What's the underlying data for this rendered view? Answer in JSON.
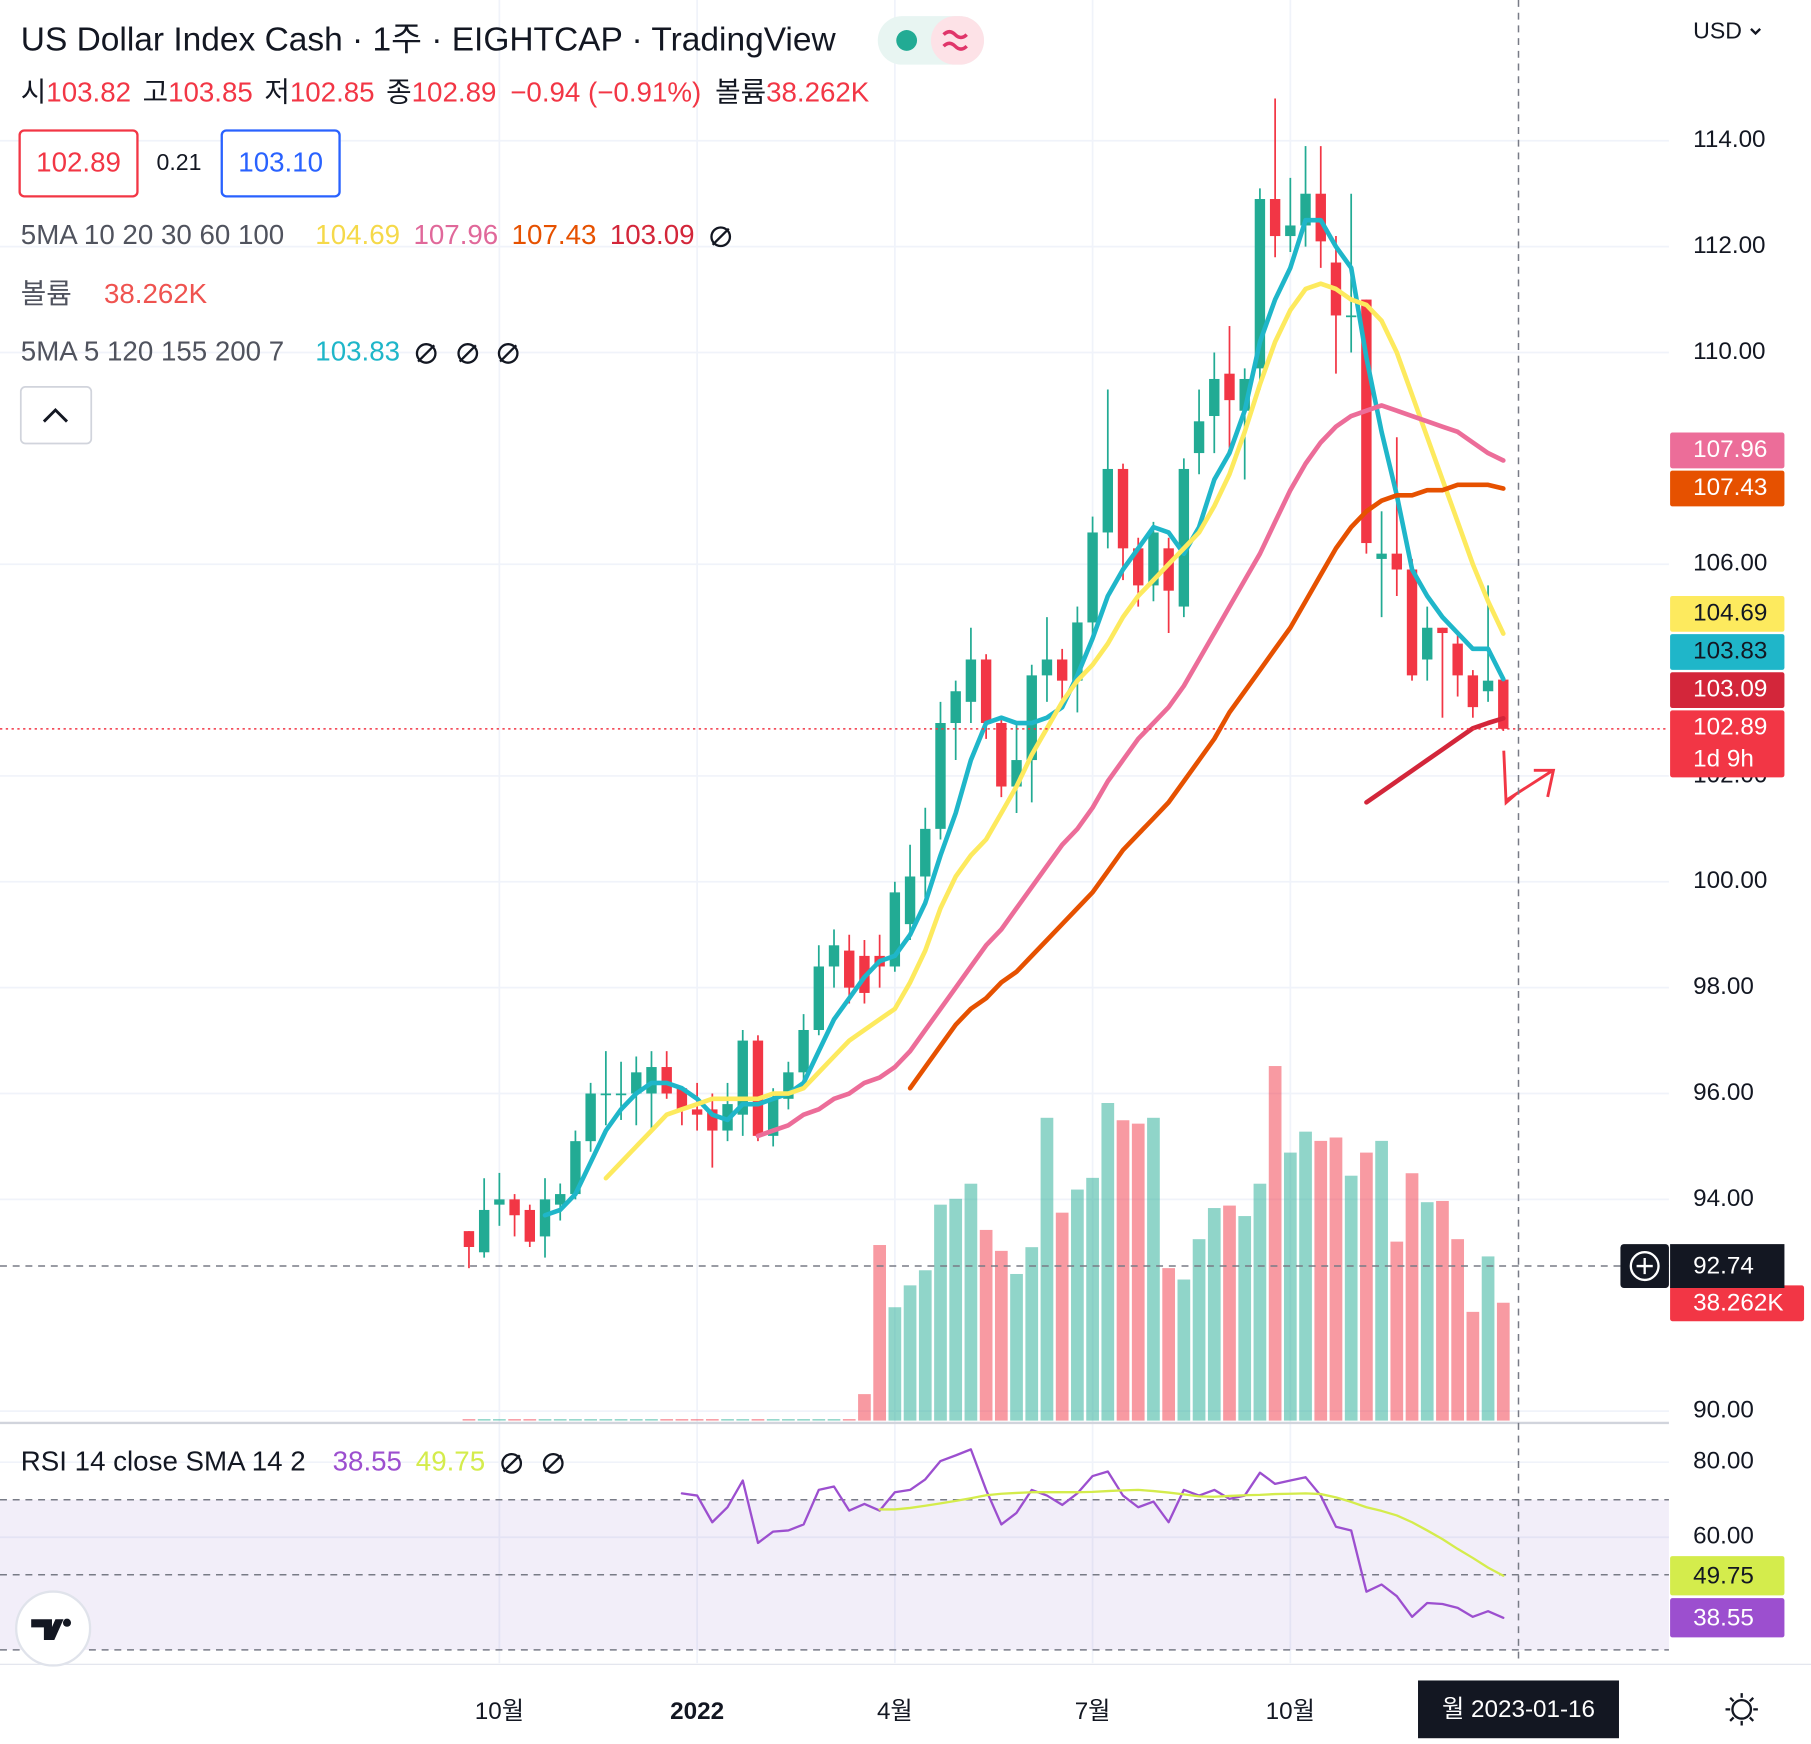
{
  "chart_data": {
    "type": "candlestick",
    "title": "US Dollar Index Cash · 1주 · EIGHTCAP · TradingView",
    "currency": "USD",
    "ohlc": [
      {
        "label": "시",
        "value": 103.82
      },
      {
        "label": "고",
        "value": 103.85
      },
      {
        "label": "저",
        "value": 102.85
      },
      {
        "label": "종",
        "value": 102.89
      }
    ],
    "change": "−0.94 (−0.91%)",
    "volume_legend": {
      "label": "볼륨",
      "value": "38.262K"
    },
    "quote": {
      "bid": "102.89",
      "spread": "0.21",
      "ask": "103.10"
    },
    "indicators": [
      {
        "name": "5MA 10 20 30 60 100",
        "values": [
          {
            "label": "104.69",
            "color": "#f5d94a"
          },
          {
            "label": "107.96",
            "color": "#e0689a"
          },
          {
            "label": "107.43",
            "color": "#e65100"
          },
          {
            "label": "103.09",
            "color": "#d3263a"
          }
        ]
      },
      {
        "name": "볼륨",
        "values": [
          {
            "label": "38.262K",
            "color": "#ef5350"
          }
        ]
      },
      {
        "name": "5MA 5 120 155 200 7",
        "values": [
          {
            "label": "103.83",
            "color": "#1fb6c9"
          }
        ]
      }
    ],
    "up_color": "#22ab94",
    "down_color": "#f23645",
    "xlim": [
      -30.83,
      78.89
    ],
    "xticks": [
      {
        "value": 2,
        "label": "10월"
      },
      {
        "value": 15,
        "label": "2022"
      },
      {
        "value": 28,
        "label": "4월"
      },
      {
        "value": 41,
        "label": "7월"
      },
      {
        "value": 54,
        "label": "10월"
      }
    ],
    "ylim": [
      89.82,
      116.66
    ],
    "yticks": [
      {
        "value": 90,
        "label": "90.00"
      },
      {
        "value": 94,
        "label": "94.00"
      },
      {
        "value": 96,
        "label": "96.00"
      },
      {
        "value": 98,
        "label": "98.00"
      },
      {
        "value": 100,
        "label": "100.00"
      },
      {
        "value": 102,
        "label": "102.00"
      },
      {
        "value": 106,
        "label": "106.00"
      },
      {
        "value": 110,
        "label": "110.00"
      },
      {
        "value": 112,
        "label": "112.00"
      },
      {
        "value": 114,
        "label": "114.00"
      }
    ],
    "grid": true,
    "open": [
      93.4,
      93.0,
      93.9,
      94.0,
      93.8,
      93.3,
      93.9,
      94.1,
      95.1,
      96.0,
      96.0,
      96.0,
      96.0,
      96.5,
      96.1,
      95.7,
      95.7,
      95.3,
      95.6,
      97.0,
      95.2,
      95.9,
      96.4,
      97.2,
      98.4,
      98.7,
      98.6,
      98.6,
      98.4,
      99.2,
      100.1,
      101.0,
      103.0,
      103.4,
      104.2,
      103.0,
      101.8,
      102.3,
      103.9,
      104.2,
      103.8,
      104.9,
      106.6,
      107.8,
      106.3,
      105.6,
      106.3,
      105.2,
      108.1,
      108.8,
      109.6,
      108.9,
      109.7,
      112.9,
      112.2,
      112.4,
      113.0,
      111.7,
      110.7,
      111.0,
      106.1,
      106.2,
      105.9,
      104.2,
      104.8,
      104.5,
      103.9,
      103.6,
      103.82
    ],
    "high": [
      93.4,
      94.4,
      94.5,
      94.1,
      93.9,
      94.4,
      94.3,
      95.3,
      96.2,
      96.8,
      96.6,
      96.7,
      96.8,
      96.8,
      96.1,
      96.2,
      96.0,
      96.2,
      97.2,
      97.1,
      96.1,
      96.6,
      97.5,
      98.8,
      99.1,
      99.0,
      98.9,
      99.0,
      100.0,
      100.7,
      101.4,
      103.4,
      103.8,
      104.8,
      104.3,
      103.1,
      103.0,
      104.1,
      105.0,
      104.4,
      105.2,
      106.9,
      109.3,
      107.9,
      106.5,
      106.8,
      106.5,
      108.0,
      109.3,
      110.0,
      110.5,
      109.7,
      113.1,
      114.8,
      113.3,
      113.9,
      113.9,
      112.2,
      113.0,
      111.0,
      107.0,
      108.4,
      106.1,
      105.2,
      104.8,
      104.7,
      104.0,
      105.6,
      103.85
    ],
    "low": [
      92.7,
      92.9,
      93.5,
      93.3,
      93.1,
      92.9,
      93.6,
      94.0,
      94.9,
      95.4,
      95.5,
      95.4,
      95.3,
      95.9,
      95.4,
      95.3,
      94.6,
      95.1,
      95.2,
      95.1,
      95.0,
      95.7,
      96.1,
      97.1,
      98.0,
      97.7,
      97.7,
      98.0,
      98.3,
      98.9,
      99.7,
      100.8,
      102.3,
      103.0,
      102.7,
      101.6,
      101.3,
      101.5,
      103.4,
      103.3,
      103.2,
      104.6,
      106.3,
      105.7,
      105.2,
      105.3,
      104.7,
      105.0,
      107.7,
      108.1,
      108.2,
      107.6,
      109.3,
      111.8,
      111.9,
      112.0,
      111.6,
      109.6,
      110.0,
      106.2,
      105.0,
      105.4,
      103.8,
      103.8,
      103.1,
      103.5,
      103.1,
      103.4,
      102.85
    ],
    "close": [
      93.1,
      93.8,
      94.0,
      93.7,
      93.2,
      94.0,
      94.1,
      95.1,
      96.0,
      96.0,
      96.0,
      96.4,
      96.5,
      96.0,
      95.7,
      95.6,
      95.3,
      95.8,
      97.0,
      95.2,
      95.9,
      96.4,
      97.2,
      98.4,
      98.8,
      98.0,
      97.9,
      98.4,
      99.8,
      100.1,
      101.0,
      103.0,
      103.6,
      104.2,
      103.0,
      101.8,
      102.3,
      103.9,
      104.2,
      103.8,
      104.9,
      106.6,
      107.8,
      106.3,
      105.6,
      106.6,
      105.5,
      107.8,
      108.7,
      109.5,
      109.1,
      109.5,
      112.9,
      112.2,
      112.4,
      113.0,
      112.1,
      110.7,
      110.7,
      106.4,
      106.2,
      105.9,
      103.9,
      104.8,
      104.7,
      103.9,
      103.3,
      103.8,
      102.89
    ],
    "volume": [
      0.5,
      0.5,
      0.5,
      0.5,
      0.5,
      0.5,
      0.5,
      0.5,
      0.5,
      0.5,
      0.5,
      0.5,
      0.5,
      0.5,
      0.5,
      0.5,
      0.5,
      0.5,
      0.5,
      0.5,
      0.5,
      0.5,
      0.5,
      0.5,
      0.5,
      0.5,
      8.6,
      57.0,
      36.8,
      43.9,
      48.8,
      70.1,
      72.0,
      76.9,
      61.9,
      55.1,
      47.6,
      56.3,
      98.3,
      67.5,
      75.0,
      78.8,
      103.1,
      97.5,
      96.4,
      98.3,
      49.5,
      45.8,
      58.9,
      69.0,
      69.8,
      66.4,
      76.9,
      115.1,
      87.0,
      93.8,
      90.8,
      91.9,
      79.5,
      87.0,
      90.8,
      58.1,
      80.3,
      70.9,
      71.3,
      58.9,
      35.3,
      53.3,
      38.262
    ],
    "volume_badge": {
      "label": "38.262K",
      "color": "#f23645"
    },
    "series": [
      {
        "color": "#1fb6c9",
        "values": [
          null,
          null,
          null,
          null,
          null,
          93.7,
          93.8,
          94.1,
          94.7,
          95.3,
          95.7,
          96.0,
          96.2,
          96.2,
          96.1,
          95.9,
          95.6,
          95.5,
          95.8,
          95.8,
          95.9,
          96.0,
          96.2,
          96.8,
          97.4,
          97.8,
          98.2,
          98.5,
          98.6,
          99.0,
          99.6,
          100.5,
          101.3,
          102.3,
          103.0,
          103.1,
          103.0,
          103.0,
          103.1,
          103.3,
          103.9,
          104.6,
          105.4,
          105.9,
          106.3,
          106.7,
          106.6,
          106.2,
          106.7,
          107.6,
          108.1,
          108.9,
          110.2,
          111.0,
          111.6,
          112.5,
          112.5,
          112.0,
          111.6,
          109.9,
          108.5,
          107.3,
          105.9,
          105.4,
          105.0,
          104.7,
          104.4,
          104.4,
          103.83
        ]
      },
      {
        "color": "#fdea5e",
        "values": [
          null,
          null,
          null,
          null,
          null,
          null,
          null,
          null,
          null,
          94.4,
          94.7,
          95.0,
          95.3,
          95.6,
          95.7,
          95.8,
          95.9,
          95.9,
          95.9,
          95.9,
          96.0,
          96.0,
          96.1,
          96.4,
          96.7,
          97.0,
          97.2,
          97.4,
          97.6,
          98.1,
          98.7,
          99.5,
          100.1,
          100.5,
          100.8,
          101.3,
          101.8,
          102.4,
          102.9,
          103.4,
          103.8,
          104.1,
          104.5,
          105.0,
          105.4,
          105.7,
          106.0,
          106.3,
          106.6,
          107.1,
          107.7,
          108.5,
          109.4,
          110.2,
          110.8,
          111.2,
          111.3,
          111.2,
          111.0,
          110.9,
          110.6,
          110.0,
          109.2,
          108.4,
          107.6,
          106.8,
          106.0,
          105.3,
          104.69
        ]
      },
      {
        "color": "#ec6d99",
        "values": [
          null,
          null,
          null,
          null,
          null,
          null,
          null,
          null,
          null,
          null,
          null,
          null,
          null,
          null,
          null,
          null,
          null,
          null,
          null,
          95.2,
          95.3,
          95.4,
          95.6,
          95.7,
          95.9,
          96.0,
          96.2,
          96.3,
          96.5,
          96.8,
          97.2,
          97.6,
          98.0,
          98.4,
          98.8,
          99.1,
          99.5,
          99.9,
          100.3,
          100.7,
          101.0,
          101.4,
          101.9,
          102.3,
          102.7,
          103.0,
          103.3,
          103.7,
          104.2,
          104.7,
          105.2,
          105.7,
          106.2,
          106.8,
          107.4,
          107.9,
          108.3,
          108.6,
          108.8,
          108.9,
          109.0,
          108.9,
          108.8,
          108.7,
          108.6,
          108.5,
          108.3,
          108.1,
          107.96
        ]
      },
      {
        "color": "#e65100",
        "values": [
          null,
          null,
          null,
          null,
          null,
          null,
          null,
          null,
          null,
          null,
          null,
          null,
          null,
          null,
          null,
          null,
          null,
          null,
          null,
          null,
          null,
          null,
          null,
          null,
          null,
          null,
          null,
          null,
          null,
          96.1,
          96.5,
          96.9,
          97.3,
          97.6,
          97.8,
          98.1,
          98.3,
          98.6,
          98.9,
          99.2,
          99.5,
          99.8,
          100.2,
          100.6,
          100.9,
          101.2,
          101.5,
          101.9,
          102.3,
          102.7,
          103.2,
          103.6,
          104.0,
          104.4,
          104.8,
          105.3,
          105.8,
          106.3,
          106.7,
          107.0,
          107.2,
          107.3,
          107.3,
          107.4,
          107.4,
          107.5,
          107.5,
          107.5,
          107.43
        ]
      },
      {
        "color": "#d3263a",
        "values": [
          null,
          null,
          null,
          null,
          null,
          null,
          null,
          null,
          null,
          null,
          null,
          null,
          null,
          null,
          null,
          null,
          null,
          null,
          null,
          null,
          null,
          null,
          null,
          null,
          null,
          null,
          null,
          null,
          null,
          null,
          null,
          null,
          null,
          null,
          null,
          null,
          null,
          null,
          null,
          null,
          null,
          null,
          null,
          null,
          null,
          null,
          null,
          null,
          null,
          null,
          null,
          null,
          null,
          null,
          null,
          null,
          null,
          null,
          null,
          101.5,
          101.7,
          101.9,
          102.1,
          102.3,
          102.5,
          102.7,
          102.9,
          103.0,
          103.09
        ]
      }
    ],
    "price_badges": [
      {
        "value": 107.96,
        "label": "107.96",
        "color": "#ec6d99",
        "text_color": "#ffffff"
      },
      {
        "value": 107.43,
        "label": "107.43",
        "color": "#e65100",
        "text_color": "#ffffff"
      },
      {
        "value": 104.69,
        "label": "104.69",
        "color": "#fdea5e",
        "text_color": "#131722"
      },
      {
        "value": 103.83,
        "label": "103.83",
        "color": "#1fb6c9",
        "text_color": "#131722"
      },
      {
        "value": 103.09,
        "label": "103.09",
        "color": "#d3263a",
        "text_color": "#ffffff"
      },
      {
        "value": 102.89,
        "label": "102.89",
        "sub": "1d 9h",
        "color": "#f23645",
        "text_color": "#ffffff"
      }
    ],
    "crosshair": {
      "x": 69,
      "value": 92.74,
      "label": "92.74",
      "date": "월 2023-01-16"
    },
    "rsi": {
      "legend": "RSI 14 close SMA 14 2",
      "ylim": [
        26.46,
        90.46
      ],
      "yticks": [
        {
          "value": 80,
          "label": "80.00"
        },
        {
          "value": 60,
          "label": "60.00"
        }
      ],
      "levels": [
        70,
        50,
        30
      ],
      "band": [
        30,
        70
      ],
      "series": [
        {
          "color": "#9c4fcf",
          "label": "38.55",
          "values": [
            null,
            null,
            null,
            null,
            null,
            null,
            null,
            null,
            null,
            null,
            null,
            null,
            null,
            null,
            71.7,
            71.1,
            64.0,
            68.0,
            75.1,
            58.5,
            61.5,
            61.8,
            63.4,
            72.6,
            73.5,
            67.1,
            68.9,
            67.1,
            72.0,
            72.6,
            75.4,
            80.3,
            81.8,
            83.4,
            72.6,
            63.4,
            66.5,
            72.6,
            71.1,
            68.6,
            71.7,
            76.3,
            77.5,
            71.1,
            68.0,
            69.5,
            64.0,
            72.6,
            71.1,
            72.6,
            70.2,
            71.1,
            77.2,
            74.2,
            75.1,
            76.0,
            71.1,
            62.8,
            61.8,
            45.5,
            47.4,
            44.3,
            38.8,
            42.5,
            42.2,
            41.2,
            38.8,
            40.3,
            38.55
          ]
        },
        {
          "color": "#d4ec4c",
          "label": "49.75",
          "values": [
            null,
            null,
            null,
            null,
            null,
            null,
            null,
            null,
            null,
            null,
            null,
            null,
            null,
            null,
            null,
            null,
            null,
            null,
            null,
            null,
            null,
            null,
            null,
            null,
            null,
            null,
            null,
            67.4,
            67.4,
            67.8,
            68.4,
            69.0,
            69.7,
            70.4,
            71.2,
            71.6,
            71.8,
            72.0,
            72.0,
            72.0,
            72.0,
            72.1,
            72.3,
            72.5,
            72.6,
            72.3,
            71.9,
            71.4,
            70.9,
            70.8,
            71.0,
            71.2,
            71.3,
            71.5,
            71.6,
            71.7,
            71.5,
            70.6,
            69.4,
            68.0,
            67.0,
            65.8,
            64.0,
            61.8,
            59.5,
            56.9,
            54.5,
            51.9,
            49.75
          ]
        }
      ]
    }
  }
}
